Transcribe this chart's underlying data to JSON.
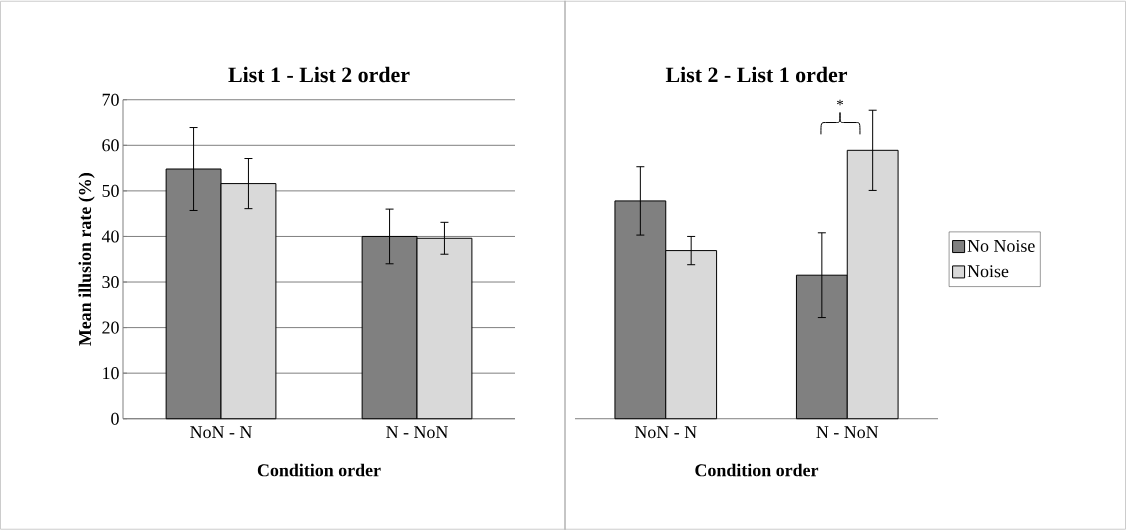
{
  "chart_data": [
    {
      "type": "bar",
      "title": "List 1 - List 2 order",
      "xlabel": "Condition order",
      "ylabel": "Mean illusion rate (%)",
      "categories": [
        "NoN - N",
        "N - NoN"
      ],
      "series": [
        {
          "color": "#808080",
          "values": [
            54.8,
            40.0
          ],
          "errors": [
            9.1,
            6.0
          ]
        },
        {
          "color": "#d9d9d9",
          "values": [
            51.6,
            39.6
          ],
          "errors": [
            5.5,
            3.5
          ]
        }
      ],
      "ylim": [
        0,
        70
      ],
      "yticks": [
        0,
        10,
        20,
        30,
        40,
        50,
        60,
        70
      ],
      "grid": "y",
      "legend": false
    },
    {
      "type": "bar",
      "title": "List 2 - List 1 order",
      "xlabel": "Condition order",
      "categories": [
        "NoN - N",
        "N - NoN"
      ],
      "series": [
        {
          "name": "No Noise",
          "color": "#808080",
          "values": [
            47.8,
            31.5
          ],
          "errors": [
            7.5,
            9.3
          ]
        },
        {
          "name": "Noise",
          "color": "#d9d9d9",
          "values": [
            36.9,
            58.9
          ],
          "errors": [
            3.1,
            8.8
          ]
        }
      ],
      "ylim": [
        0,
        70
      ],
      "yticks": [
        0,
        10,
        20,
        30,
        40,
        50,
        60,
        70
      ],
      "grid": "y",
      "legend": "right",
      "tick_labels": "x",
      "annotations": [
        "*"
      ]
    }
  ]
}
